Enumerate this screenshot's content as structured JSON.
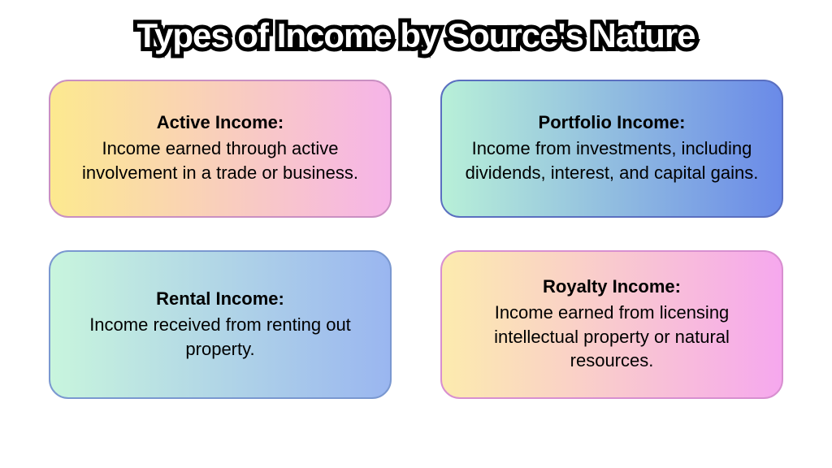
{
  "title": "Types of Income by Source's Nature",
  "cards": [
    {
      "title": "Active Income:",
      "desc": "Income earned through active involvement in a trade or business.",
      "gradient_start": "#fce98f",
      "gradient_end": "#f6b4e8",
      "border_color": "#c98fc2"
    },
    {
      "title": "Portfolio Income:",
      "desc": "Income from investments, including dividends, interest, and capital gains.",
      "gradient_start": "#b8f0d8",
      "gradient_end": "#6a8ae8",
      "border_color": "#5a6fc0"
    },
    {
      "title": "Rental Income:",
      "desc": "Income received from renting out property.",
      "gradient_start": "#c8f5dd",
      "gradient_end": "#9ab6f0",
      "border_color": "#7a98d0"
    },
    {
      "title": "Royalty Income:",
      "desc": "Income earned from licensing intellectual property or natural resources.",
      "gradient_start": "#fcebae",
      "gradient_end": "#f6a8ee",
      "border_color": "#d88fd0"
    }
  ],
  "style": {
    "background_color": "#ffffff",
    "title_color_fill": "#ffffff",
    "title_stroke_color": "#000000",
    "title_stroke_width": 10,
    "title_fontsize": 42,
    "card_title_fontsize": 22,
    "card_desc_fontsize": 22,
    "card_border_radius": 24,
    "card_text_color": "#000000"
  }
}
